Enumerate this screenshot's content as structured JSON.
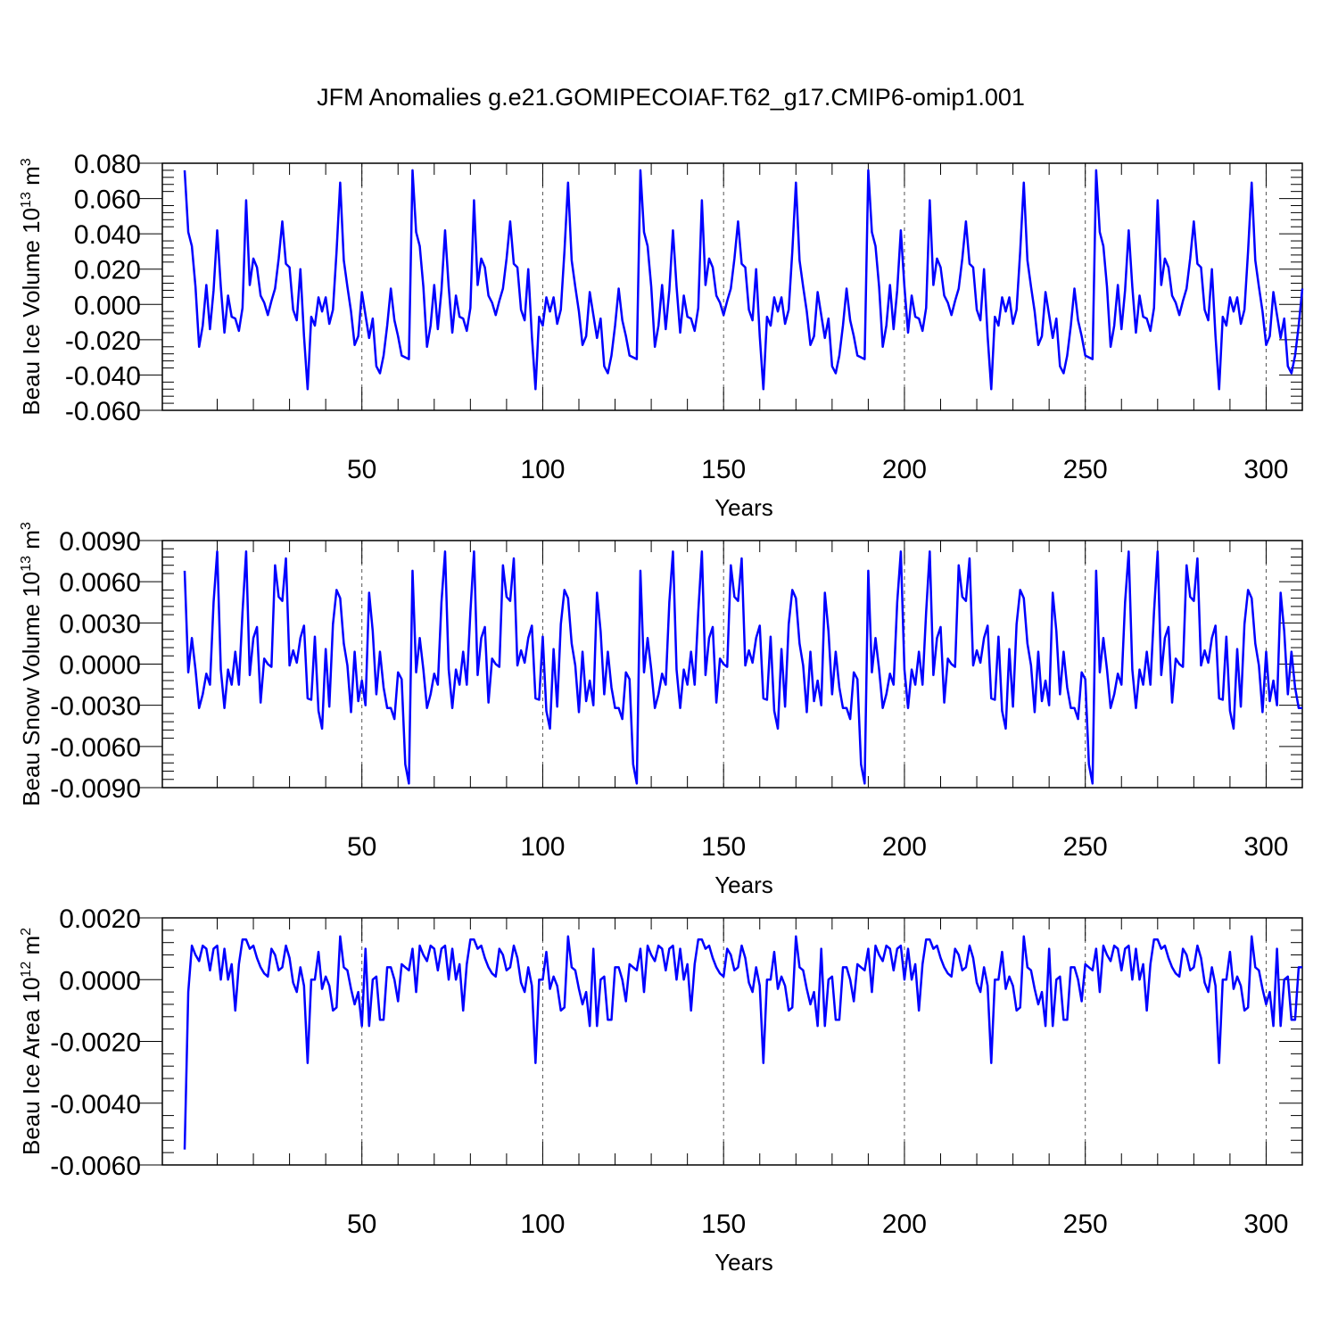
{
  "title": "JFM Anomalies g.e21.GOMIPECOIAF.T62_g17.CMIP6-omip1.001",
  "line_color": "#0000ff",
  "chart_data": [
    {
      "type": "line",
      "ylabel": {
        "prefix": "Beau Ice Volume 10",
        "exp": "13",
        "mid": " m",
        "unit_exp": "3"
      },
      "xlabel": "Years",
      "xlim": [
        1,
        310
      ],
      "ylim": [
        -0.06,
        0.08
      ],
      "xticks": [
        "50",
        "100",
        "150",
        "200",
        "250",
        "300"
      ],
      "yticks": [
        "0.080",
        "0.060",
        "0.040",
        "0.020",
        "0.000",
        "-0.020",
        "-0.040",
        "-0.060"
      ],
      "motif": [
        0.076,
        0.041,
        0.033,
        0.01,
        -0.024,
        -0.012,
        0.011,
        -0.014,
        0.008,
        0.042,
        0.01,
        -0.016,
        0.005,
        -0.007,
        -0.008,
        -0.015,
        -0.002,
        0.059,
        0.011,
        0.026,
        0.021,
        0.005,
        0.001,
        -0.006,
        0.002,
        0.009,
        0.026,
        0.047,
        0.023,
        0.021,
        -0.003,
        -0.009,
        0.02,
        -0.018,
        -0.048,
        -0.007,
        -0.012,
        0.004,
        -0.004,
        0.004,
        -0.011,
        -0.003,
        0.03,
        0.069,
        0.025,
        0.01,
        -0.004,
        -0.023,
        -0.018,
        0.007,
        -0.006,
        -0.019,
        -0.008,
        -0.035,
        -0.039,
        -0.029,
        -0.012,
        0.009,
        -0.009,
        -0.018,
        -0.029,
        -0.03,
        -0.031
      ],
      "period": 62
    },
    {
      "type": "line",
      "ylabel": {
        "prefix": "Beau Snow Volume 10",
        "exp": "13",
        "mid": " m",
        "unit_exp": "3"
      },
      "xlabel": "Years",
      "xlim": [
        1,
        310
      ],
      "ylim": [
        -0.009,
        0.009
      ],
      "xticks": [
        "50",
        "100",
        "150",
        "200",
        "250",
        "300"
      ],
      "yticks": [
        "0.0090",
        "0.0060",
        "0.0030",
        "0.0000",
        "-0.0030",
        "-0.0060",
        "-0.0090"
      ],
      "motif": [
        0.0068,
        -0.0006,
        0.0019,
        -0.0004,
        -0.0032,
        -0.0022,
        -0.0007,
        -0.0015,
        0.0045,
        0.0082,
        -0.0004,
        -0.0032,
        -0.0004,
        -0.0015,
        0.0009,
        -0.0015,
        0.0038,
        0.0082,
        -0.0008,
        0.0019,
        0.0027,
        -0.0028,
        0.0004,
        0.0,
        -0.0002,
        0.0072,
        0.0049,
        0.0046,
        0.0077,
        -0.0001,
        0.001,
        0.0001,
        0.0019,
        0.0028,
        -0.0025,
        -0.0026,
        0.002,
        -0.0034,
        -0.0047,
        0.0011,
        -0.0031,
        0.0029,
        0.0054,
        0.0048,
        0.0015,
        -0.0001,
        -0.0035,
        0.0009,
        -0.0027,
        -0.0012,
        -0.003,
        0.0052,
        0.0024,
        -0.0022,
        0.0009,
        -0.0017,
        -0.0032,
        -0.0032,
        -0.004,
        -0.0006,
        -0.0011,
        -0.0073,
        -0.0087
      ],
      "period": 62
    },
    {
      "type": "line",
      "ylabel": {
        "prefix": "Beau Ice Area 10",
        "exp": "12",
        "mid": " m",
        "unit_exp": "2"
      },
      "xlabel": "Years",
      "xlim": [
        1,
        310
      ],
      "ylim": [
        -0.006,
        0.002
      ],
      "xticks": [
        "50",
        "100",
        "150",
        "200",
        "250",
        "300"
      ],
      "yticks": [
        "0.0020",
        "0.0000",
        "-0.0020",
        "-0.0040",
        "-0.0060"
      ],
      "first_value": -0.0055,
      "motif": [
        -0.0004,
        0.0011,
        0.0008,
        0.0006,
        0.0011,
        0.001,
        0.0003,
        0.001,
        0.0011,
        0.0,
        0.001,
        0.0,
        0.0005,
        -0.001,
        0.0005,
        0.0013,
        0.0013,
        0.001,
        0.0011,
        0.0007,
        0.0004,
        0.0002,
        0.0001,
        0.001,
        0.0008,
        0.0003,
        0.0004,
        0.0011,
        0.0007,
        -0.0001,
        -0.0004,
        0.0004,
        -0.0002,
        -0.0027,
        0.0,
        0.0,
        0.0009,
        -0.0003,
        0.0001,
        -0.0002,
        -0.001,
        -0.0009,
        0.0014,
        0.0004,
        0.0003,
        -0.0003,
        -0.0008,
        -0.0004,
        -0.0015,
        0.001,
        -0.0015,
        0.0,
        0.0001,
        -0.0013,
        -0.0013,
        0.0004,
        0.0004,
        0.0,
        -0.0007,
        0.0005,
        0.0004,
        0.0003,
        0.001
      ]
    }
  ]
}
